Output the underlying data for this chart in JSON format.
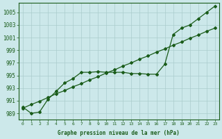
{
  "title": "Graphe pression niveau de la mer (hPa)",
  "bg_color": "#cce8ea",
  "grid_color": "#aacccc",
  "line_color": "#1a5c1a",
  "x_labels": [
    "0",
    "1",
    "2",
    "3",
    "4",
    "5",
    "6",
    "7",
    "8",
    "9",
    "10",
    "11",
    "12",
    "13",
    "14",
    "15",
    "16",
    "17",
    "18",
    "19",
    "20",
    "21",
    "22",
    "23"
  ],
  "ylim": [
    988.0,
    1006.5
  ],
  "yticks": [
    989,
    991,
    993,
    995,
    997,
    999,
    1001,
    1003,
    1005
  ],
  "series_data": [
    990.0,
    989.0,
    989.2,
    991.2,
    992.5,
    993.8,
    994.5,
    995.5,
    995.5,
    995.6,
    995.5,
    995.5,
    995.5,
    995.3,
    995.3,
    995.2,
    995.2,
    996.8,
    1001.5,
    1002.5,
    1003.0,
    1004.0,
    1005.0,
    1006.0
  ],
  "series_trend": [
    989.8,
    990.4,
    990.9,
    991.5,
    992.1,
    992.6,
    993.2,
    993.7,
    994.3,
    994.8,
    995.4,
    995.9,
    996.5,
    997.0,
    997.6,
    998.1,
    998.7,
    999.2,
    999.8,
    1000.3,
    1000.9,
    1001.4,
    1002.0,
    1002.5
  ],
  "marker": "D",
  "markersize": 2.0,
  "linewidth": 0.9,
  "xlabel_fontsize": 5.5,
  "ylabel_fontsize": 5.5,
  "tick_fontsize": 4.5,
  "title_fontsize": 5.5
}
